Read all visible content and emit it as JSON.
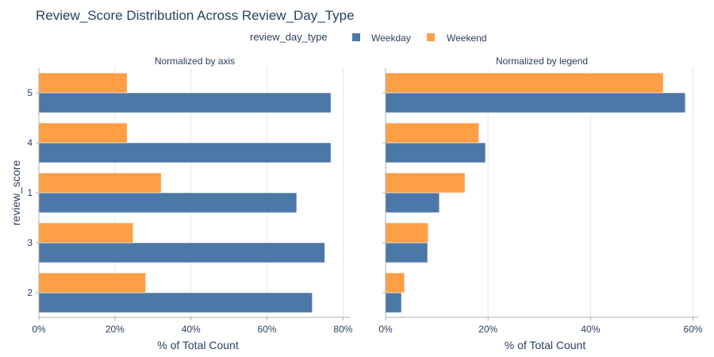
{
  "chart": {
    "title": "Review_Score Distribution Across Review_Day_Type",
    "legend_title": "review_day_type",
    "ylabel": "review_score"
  },
  "chart_data": [
    {
      "type": "bar",
      "orientation": "horizontal",
      "title": "Normalized by axis",
      "xlabel": "% of Total Count",
      "categories": [
        "5",
        "4",
        "1",
        "3",
        "2"
      ],
      "xlim": [
        0,
        82
      ],
      "xticks": [
        0,
        20,
        40,
        60,
        80
      ],
      "xtick_labels": [
        "0%",
        "20%",
        "40%",
        "60%",
        "80%"
      ],
      "grid": true,
      "series": [
        {
          "name": "Weekday",
          "color": "#4c78a8",
          "values": [
            76.8,
            76.8,
            67.8,
            75.2,
            71.9
          ]
        },
        {
          "name": "Weekend",
          "color": "#ff9f45",
          "values": [
            23.2,
            23.2,
            32.2,
            24.8,
            28.1
          ]
        }
      ]
    },
    {
      "type": "bar",
      "orientation": "horizontal",
      "title": "Normalized by legend",
      "xlabel": "% of Total Count",
      "categories": [
        "5",
        "4",
        "1",
        "3",
        "2"
      ],
      "xlim": [
        0,
        61
      ],
      "xticks": [
        0,
        20,
        40,
        60
      ],
      "xtick_labels": [
        "0%",
        "20%",
        "40%",
        "60%"
      ],
      "grid": true,
      "series": [
        {
          "name": "Weekday",
          "color": "#4c78a8",
          "values": [
            58.5,
            19.5,
            10.5,
            8.2,
            3.1
          ]
        },
        {
          "name": "Weekend",
          "color": "#ff9f45",
          "values": [
            54.2,
            18.2,
            15.5,
            8.3,
            3.7
          ]
        }
      ]
    }
  ]
}
